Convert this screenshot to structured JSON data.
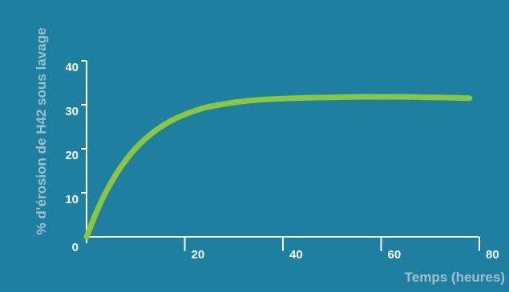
{
  "chart_data": {
    "type": "line",
    "title": "",
    "xlabel": "Temps (heures)",
    "ylabel": "% d’érosion de H42 sous lavage",
    "xlim": [
      0,
      80
    ],
    "ylim": [
      0,
      40
    ],
    "xticks": [
      "20",
      "40",
      "60",
      "80"
    ],
    "yticks": [
      "0",
      "10",
      "20",
      "30",
      "40"
    ],
    "grid": false,
    "legend": "none",
    "series": [
      {
        "x": [
          0,
          2,
          4,
          6,
          8,
          10,
          12,
          14,
          16,
          18,
          20,
          24,
          28,
          32,
          36,
          40,
          45,
          50,
          55,
          60,
          65,
          70,
          75,
          78
        ],
        "y": [
          0,
          5.6,
          10.3,
          14.2,
          17.4,
          20.1,
          22.3,
          24.1,
          25.6,
          26.8,
          27.8,
          29.3,
          30.2,
          30.8,
          31.2,
          31.4,
          31.6,
          31.7,
          31.8,
          31.8,
          31.8,
          31.7,
          31.6,
          31.5
        ]
      }
    ]
  },
  "colors": {
    "background": "#1f7fa1",
    "line": "#8cc63f",
    "axis": "#ffffff",
    "tick_label": "#ffffff",
    "axis_title": "#9fc1cc"
  }
}
